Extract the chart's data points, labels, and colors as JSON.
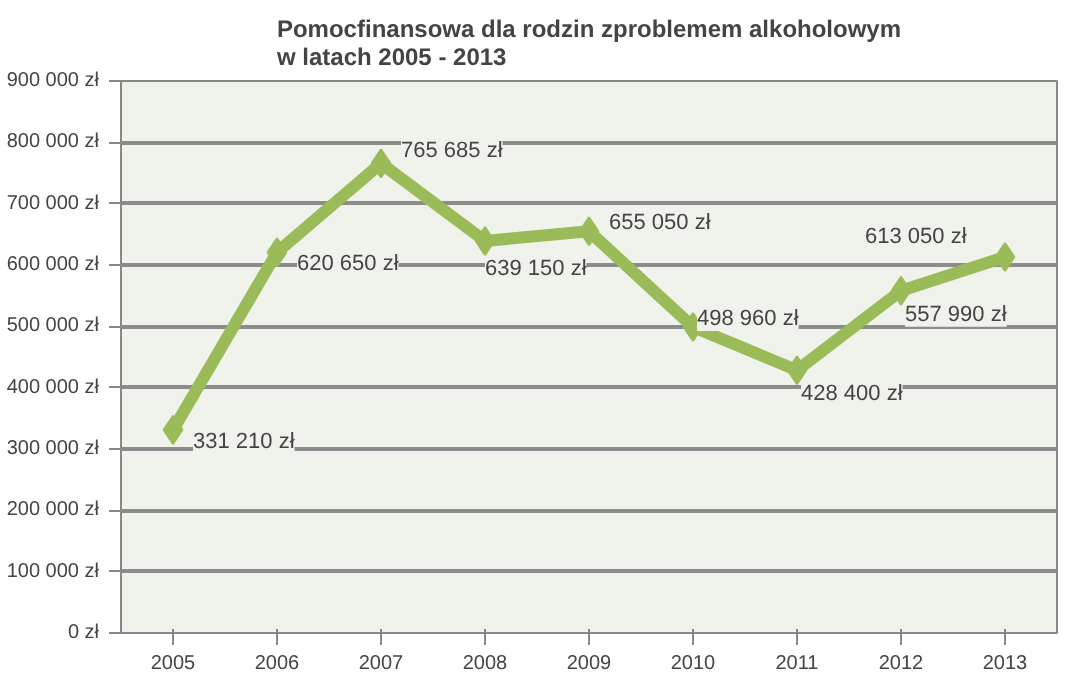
{
  "chart_data": {
    "type": "line",
    "title": "Pomocfinansowa dla rodzin zproblemem alkoholowym\nw latach 2005 - 2013",
    "categories": [
      "2005",
      "2006",
      "2007",
      "2008",
      "2009",
      "2010",
      "2011",
      "2012",
      "2013"
    ],
    "series": [
      {
        "color": "#9bbb59",
        "values": [
          331210,
          620650,
          765685,
          639150,
          655050,
          498960,
          428400,
          557990,
          613050
        ],
        "value_labels": [
          "331 210 zł",
          "620 650 zł",
          "765 685 zł",
          "639 150 zł",
          "655 050 zł",
          "498 960 zł",
          "428 400 zł",
          "557 990 zł",
          "613 050 zł"
        ]
      }
    ],
    "ylim": [
      0,
      900000
    ],
    "yticks": [
      {
        "value": 0,
        "label": "0 zł"
      },
      {
        "value": 100000,
        "label": "100 000 zł"
      },
      {
        "value": 200000,
        "label": "200 000 zł"
      },
      {
        "value": 300000,
        "label": "300 000 zł"
      },
      {
        "value": 400000,
        "label": "400 000 zł"
      },
      {
        "value": 500000,
        "label": "500 000 zł"
      },
      {
        "value": 600000,
        "label": "600 000 zł"
      },
      {
        "value": 700000,
        "label": "700 000 zł"
      },
      {
        "value": 800000,
        "label": "800 000 zł"
      },
      {
        "value": 900000,
        "label": "900 000 zł"
      }
    ],
    "grid": "y",
    "marker": "diamond",
    "line_style": "solid"
  }
}
